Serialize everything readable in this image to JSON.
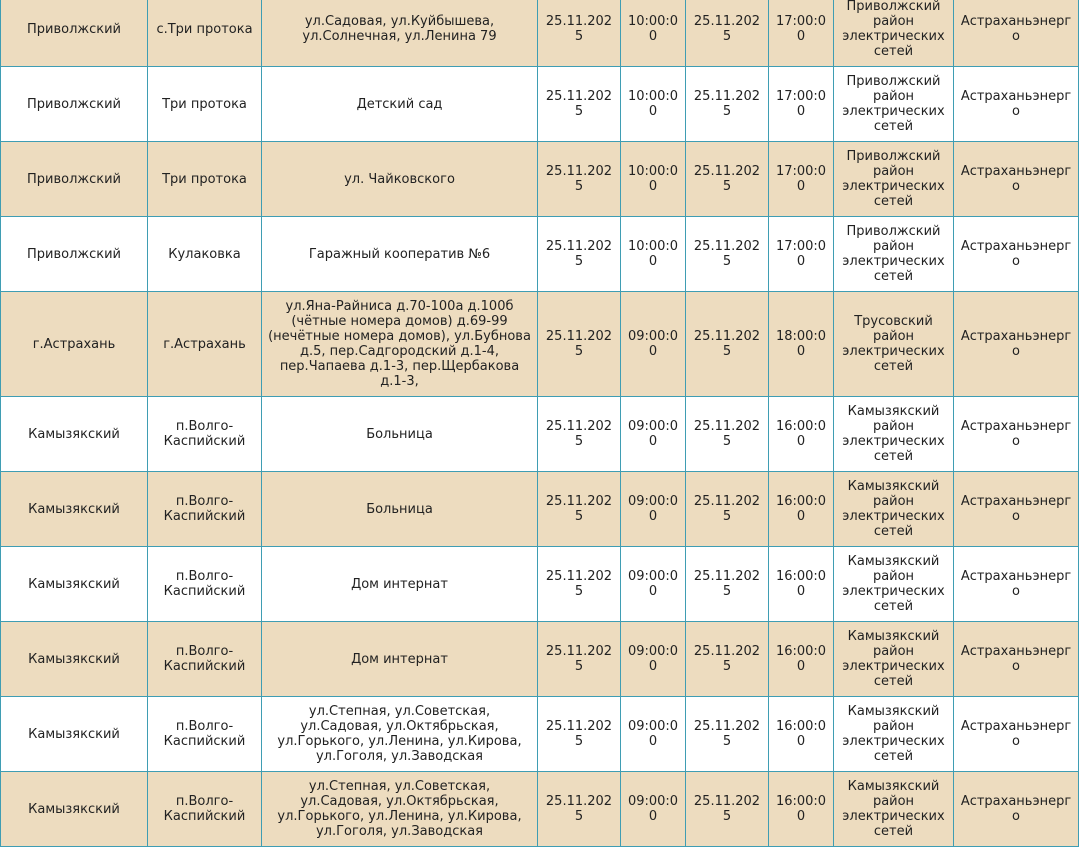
{
  "table": {
    "rows": [
      [
        "Приволжский",
        "с.Три протока",
        "ул.Садовая, ул.Куйбышева, ул.Солнечная, ул.Ленина 79",
        "25.11.2025",
        "10:00:00",
        "25.11.2025",
        "17:00:00",
        "Приволжский район электрических сетей",
        "Астраханьэнерго"
      ],
      [
        "Приволжский",
        "Три протока",
        "Детский сад",
        "25.11.2025",
        "10:00:00",
        "25.11.2025",
        "17:00:00",
        "Приволжский район электрических сетей",
        "Астраханьэнерго"
      ],
      [
        "Приволжский",
        "Три протока",
        "ул. Чайковского",
        "25.11.2025",
        "10:00:00",
        "25.11.2025",
        "17:00:00",
        "Приволжский район электрических сетей",
        "Астраханьэнерго"
      ],
      [
        "Приволжский",
        "Кулаковка",
        "Гаражный кооператив №6",
        "25.11.2025",
        "10:00:00",
        "25.11.2025",
        "17:00:00",
        "Приволжский район электрических сетей",
        "Астраханьэнерго"
      ],
      [
        "г.Астрахань",
        "г.Астрахань",
        "ул.Яна-Райниса д.70-100а д.100б (чётные номера домов) д.69-99 (нечётные номера домов), ул.Бубнова д.5, пер.Садгородский д.1-4, пер.Чапаева д.1-3, пер.Щербакова д.1-3,",
        "25.11.2025",
        "09:00:00",
        "25.11.2025",
        "18:00:00",
        "Трусовский район электрических сетей",
        "Астраханьэнерго"
      ],
      [
        "Камызякский",
        "п.Волго-Каспийский",
        "Больница",
        "25.11.2025",
        "09:00:00",
        "25.11.2025",
        "16:00:00",
        "Камызякский район электрических сетей",
        "Астраханьэнерго"
      ],
      [
        "Камызякский",
        "п.Волго-Каспийский",
        "Больница",
        "25.11.2025",
        "09:00:00",
        "25.11.2025",
        "16:00:00",
        "Камызякский район электрических сетей",
        "Астраханьэнерго"
      ],
      [
        "Камызякский",
        "п.Волго-Каспийский",
        "Дом интернат",
        "25.11.2025",
        "09:00:00",
        "25.11.2025",
        "16:00:00",
        "Камызякский район электрических сетей",
        "Астраханьэнерго"
      ],
      [
        "Камызякский",
        "п.Волго-Каспийский",
        "Дом интернат",
        "25.11.2025",
        "09:00:00",
        "25.11.2025",
        "16:00:00",
        "Камызякский район электрических сетей",
        "Астраханьэнерго"
      ],
      [
        "Камызякский",
        "п.Волго-Каспийский",
        "ул.Степная, ул.Советская, ул.Садовая, ул.Октябрьская, ул.Горького, ул.Ленина, ул.Кирова, ул.Гоголя, ул.Заводская",
        "25.11.2025",
        "09:00:00",
        "25.11.2025",
        "16:00:00",
        "Камызякский район электрических сетей",
        "Астраханьэнерго"
      ],
      [
        "Камызякский",
        "п.Волго-Каспийский",
        "ул.Степная, ул.Советская, ул.Садовая, ул.Октябрьская, ул.Горького, ул.Ленина, ул.Кирова, ул.Гоголя, ул.Заводская",
        "25.11.2025",
        "09:00:00",
        "25.11.2025",
        "16:00:00",
        "Камызякский район электрических сетей",
        "Астраханьэнерго"
      ]
    ]
  }
}
